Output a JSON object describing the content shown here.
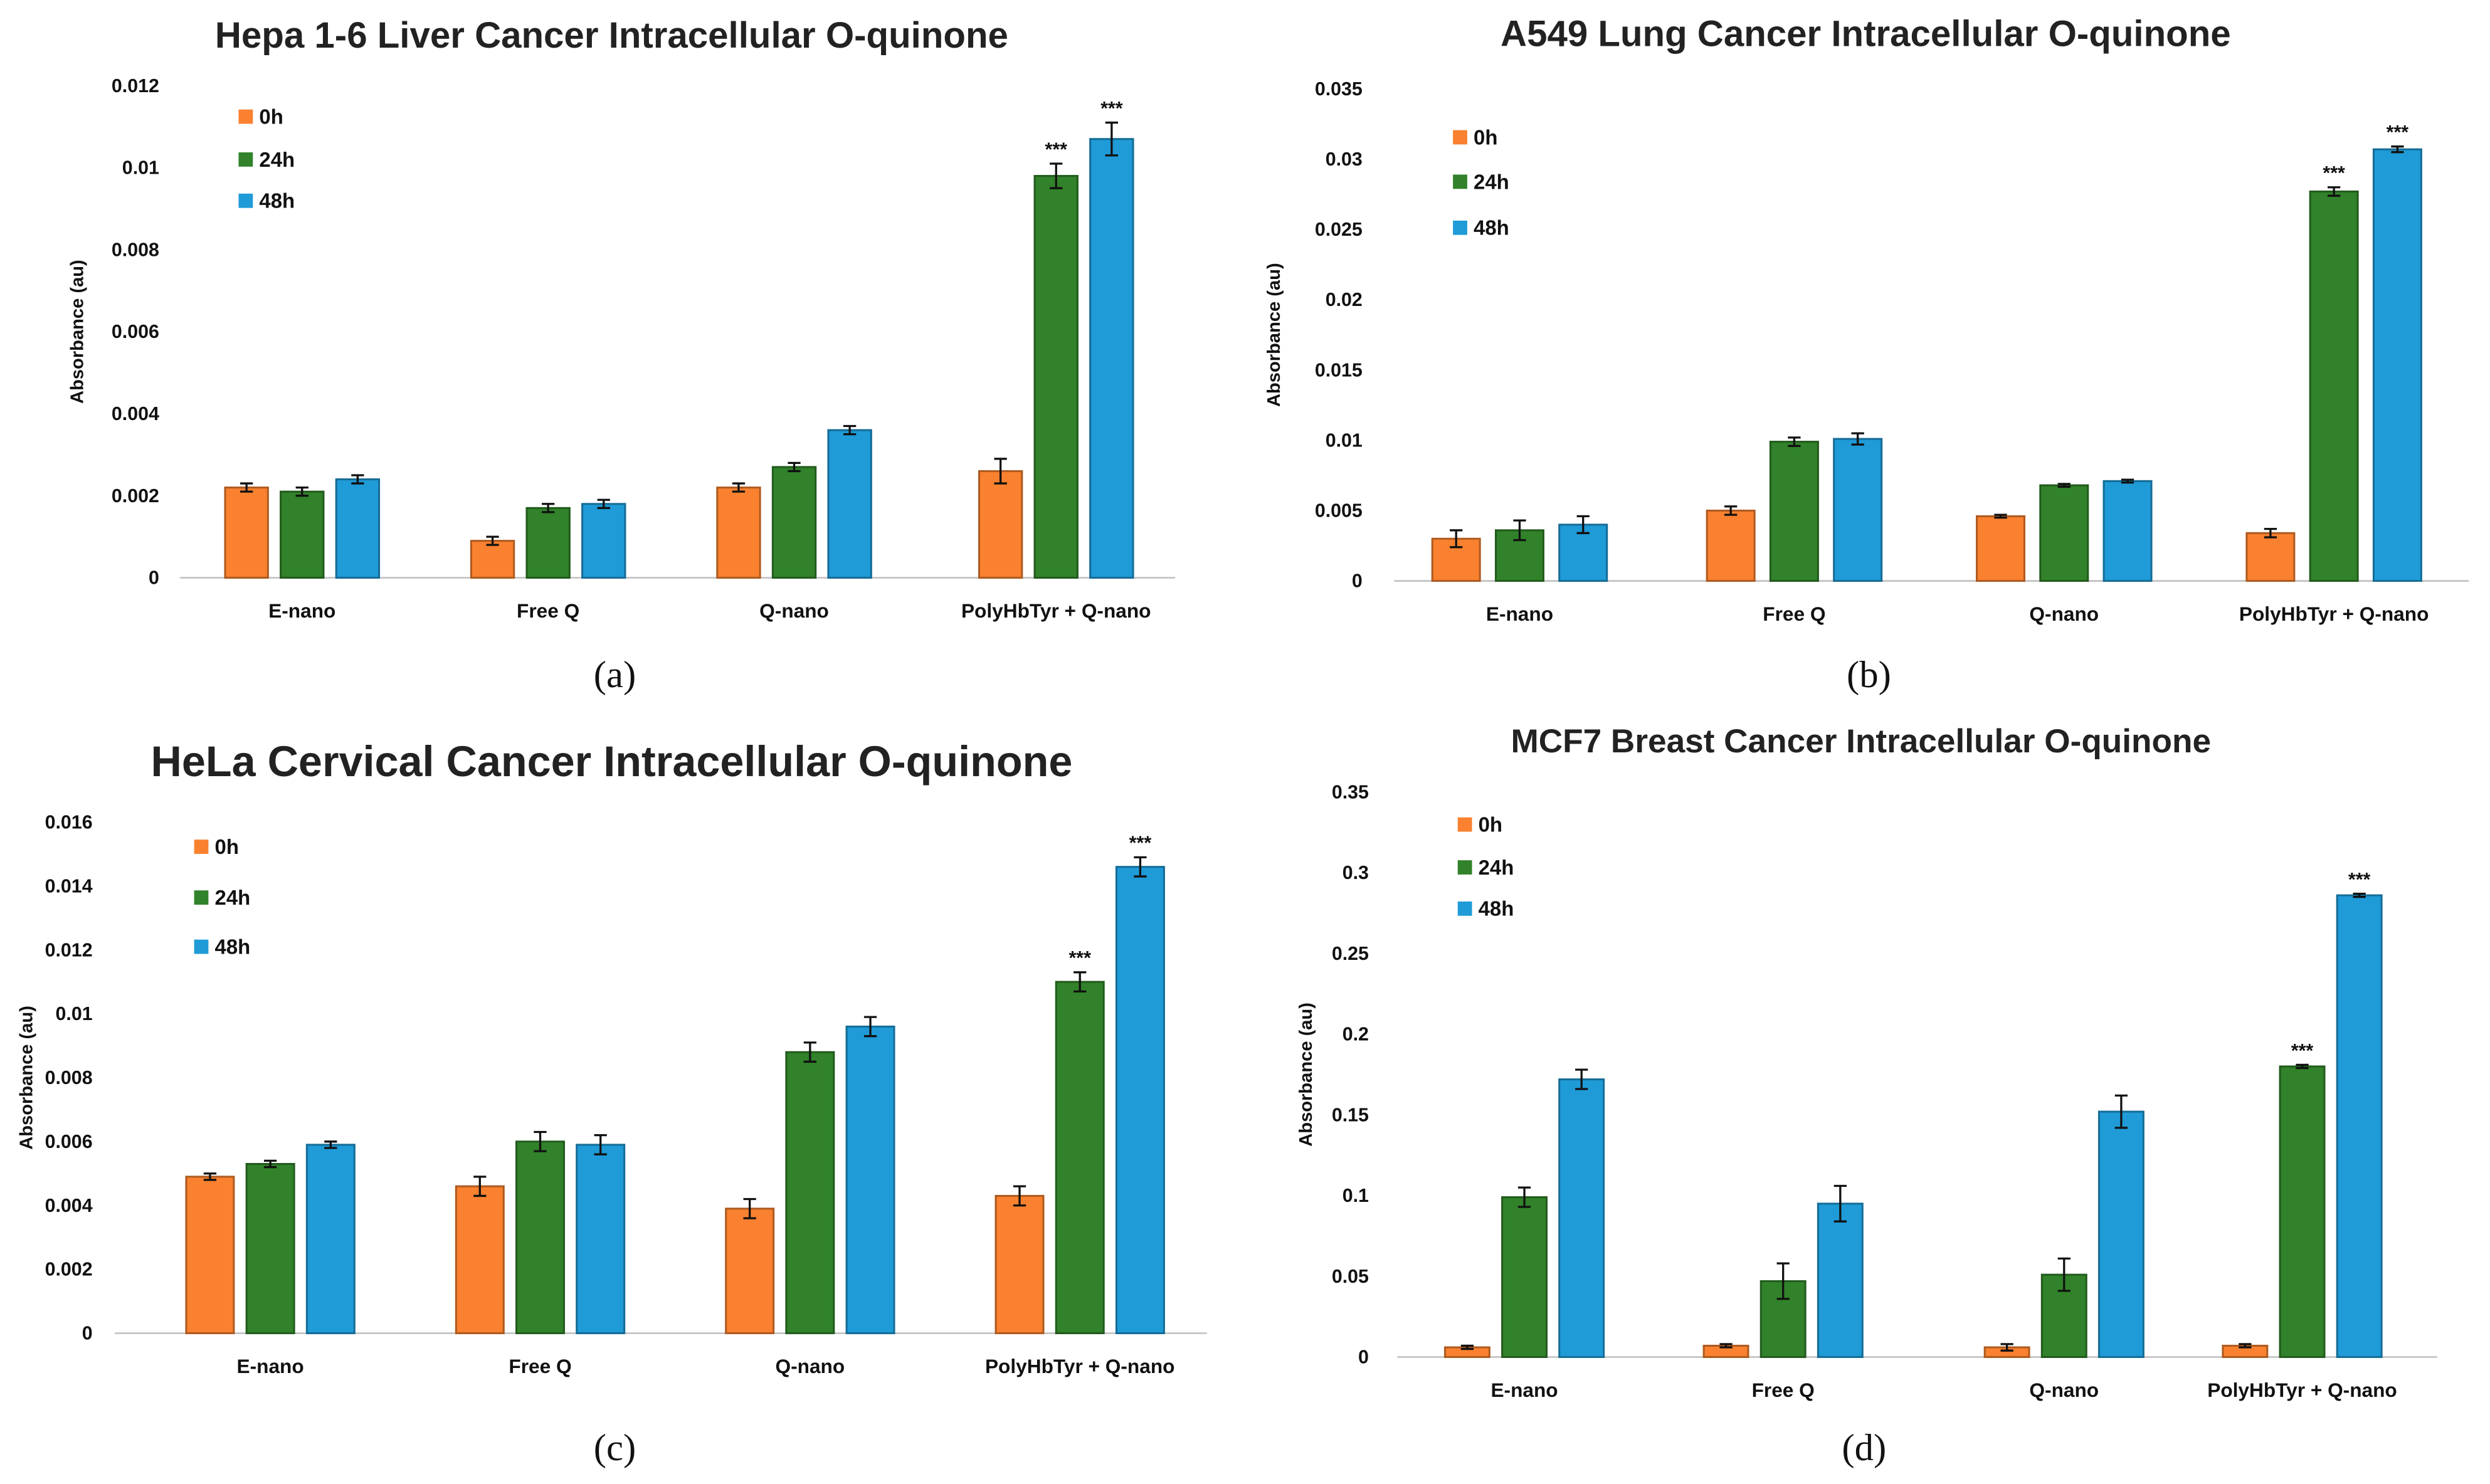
{
  "chart_data": [
    {
      "type": "bar",
      "panel": "a",
      "caption": "(a)",
      "title": "Hepa 1-6 Liver Cancer Intracellular O-quinone",
      "xlabel": "",
      "ylabel": "Absorbance (au)",
      "ylim": [
        0,
        0.012
      ],
      "yticks": [
        "0",
        "0.002",
        "0.004",
        "0.006",
        "0.008",
        "0.01",
        "0.012"
      ],
      "ytick_values": [
        0,
        0.002,
        0.004,
        0.006,
        0.008,
        0.01,
        0.012
      ],
      "categories": [
        "E-nano",
        "Free Q",
        "Q-nano",
        "PolyHbTyr + Q-nano"
      ],
      "legend_position": "top-left",
      "series": [
        {
          "name": "0h",
          "color": "#F9812F",
          "values": [
            0.0022,
            0.0009,
            0.0022,
            0.0026
          ],
          "errors": [
            0.0001,
            0.0001,
            0.0001,
            0.0003
          ],
          "stars": [
            "",
            "",
            "",
            ""
          ]
        },
        {
          "name": "24h",
          "color": "#31822A",
          "values": [
            0.0021,
            0.0017,
            0.0027,
            0.0098
          ],
          "errors": [
            0.0001,
            0.0001,
            0.0001,
            0.0003
          ],
          "stars": [
            "",
            "",
            "",
            "***"
          ]
        },
        {
          "name": "48h",
          "color": "#1F9BD7",
          "values": [
            0.0024,
            0.0018,
            0.0036,
            0.0107
          ],
          "errors": [
            0.0001,
            0.0001,
            0.0001,
            0.0004
          ],
          "stars": [
            "",
            "",
            "",
            "***"
          ]
        }
      ]
    },
    {
      "type": "bar",
      "panel": "b",
      "caption": "(b)",
      "title": "A549 Lung Cancer Intracellular O-quinone",
      "xlabel": "",
      "ylabel": "Absorbance (au)",
      "ylim": [
        0,
        0.035
      ],
      "yticks": [
        "0",
        "0.005",
        "0.01",
        "0.015",
        "0.02",
        "0.025",
        "0.03",
        "0.035"
      ],
      "ytick_values": [
        0,
        0.005,
        0.01,
        0.015,
        0.02,
        0.025,
        0.03,
        0.035
      ],
      "categories": [
        "E-nano",
        "Free Q",
        "Q-nano",
        "PolyHbTyr + Q-nano"
      ],
      "legend_position": "top-left",
      "series": [
        {
          "name": "0h",
          "color": "#F9812F",
          "values": [
            0.003,
            0.005,
            0.0046,
            0.0034
          ],
          "errors": [
            0.0006,
            0.0003,
            0.0001,
            0.0003
          ],
          "stars": [
            "",
            "",
            "",
            ""
          ]
        },
        {
          "name": "24h",
          "color": "#31822A",
          "values": [
            0.0036,
            0.0099,
            0.0068,
            0.0277
          ],
          "errors": [
            0.0007,
            0.0003,
            0.0001,
            0.0003
          ],
          "stars": [
            "",
            "",
            "",
            "***"
          ]
        },
        {
          "name": "48h",
          "color": "#1F9BD7",
          "values": [
            0.004,
            0.0101,
            0.0071,
            0.0307
          ],
          "errors": [
            0.0006,
            0.0004,
            0.0001,
            0.0002
          ],
          "stars": [
            "",
            "",
            "",
            "***"
          ]
        }
      ]
    },
    {
      "type": "bar",
      "panel": "c",
      "caption": "(c)",
      "title": "HeLa Cervical Cancer Intracellular O-quinone",
      "xlabel": "",
      "ylabel": "Absorbance (au)",
      "ylim": [
        0,
        0.016
      ],
      "yticks": [
        "0",
        "0.002",
        "0.004",
        "0.006",
        "0.008",
        "0.01",
        "0.012",
        "0.014",
        "0.016"
      ],
      "ytick_values": [
        0,
        0.002,
        0.004,
        0.006,
        0.008,
        0.01,
        0.012,
        0.014,
        0.016
      ],
      "categories": [
        "E-nano",
        "Free Q",
        "Q-nano",
        "PolyHbTyr + Q-nano"
      ],
      "legend_position": "top-left",
      "series": [
        {
          "name": "0h",
          "color": "#F9812F",
          "values": [
            0.0049,
            0.0046,
            0.0039,
            0.0043
          ],
          "errors": [
            0.0001,
            0.0003,
            0.0003,
            0.0003
          ],
          "stars": [
            "",
            "",
            "",
            ""
          ]
        },
        {
          "name": "24h",
          "color": "#31822A",
          "values": [
            0.0053,
            0.006,
            0.0088,
            0.011
          ],
          "errors": [
            0.0001,
            0.0003,
            0.0003,
            0.0003
          ],
          "stars": [
            "",
            "",
            "",
            "***"
          ]
        },
        {
          "name": "48h",
          "color": "#1F9BD7",
          "values": [
            0.0059,
            0.0059,
            0.0096,
            0.0146
          ],
          "errors": [
            0.0001,
            0.0003,
            0.0003,
            0.0003
          ],
          "stars": [
            "",
            "",
            "",
            "***"
          ]
        }
      ]
    },
    {
      "type": "bar",
      "panel": "d",
      "caption": "(d)",
      "title": "MCF7 Breast Cancer Intracellular O-quinone",
      "xlabel": "",
      "ylabel": "Absorbance (au)",
      "ylim": [
        0,
        0.35
      ],
      "yticks": [
        "0",
        "0.05",
        "0.1",
        "0.15",
        "0.2",
        "0.25",
        "0.3",
        "0.35"
      ],
      "ytick_values": [
        0,
        0.05,
        0.1,
        0.15,
        0.2,
        0.25,
        0.3,
        0.35
      ],
      "categories": [
        "E-nano",
        "Free Q",
        "Q-nano",
        "PolyHbTyr + Q-nano"
      ],
      "legend_position": "top-left",
      "series": [
        {
          "name": "0h",
          "color": "#F9812F",
          "values": [
            0.006,
            0.007,
            0.006,
            0.007
          ],
          "errors": [
            0.001,
            0.001,
            0.002,
            0.001
          ],
          "stars": [
            "",
            "",
            "",
            ""
          ]
        },
        {
          "name": "24h",
          "color": "#31822A",
          "values": [
            0.099,
            0.047,
            0.051,
            0.18
          ],
          "errors": [
            0.006,
            0.011,
            0.01,
            0.001
          ],
          "stars": [
            "",
            "",
            "",
            "***"
          ]
        },
        {
          "name": "48h",
          "color": "#1F9BD7",
          "values": [
            0.172,
            0.095,
            0.152,
            0.286
          ],
          "errors": [
            0.006,
            0.011,
            0.01,
            0.001
          ],
          "stars": [
            "",
            "",
            "",
            "***"
          ]
        }
      ]
    }
  ]
}
